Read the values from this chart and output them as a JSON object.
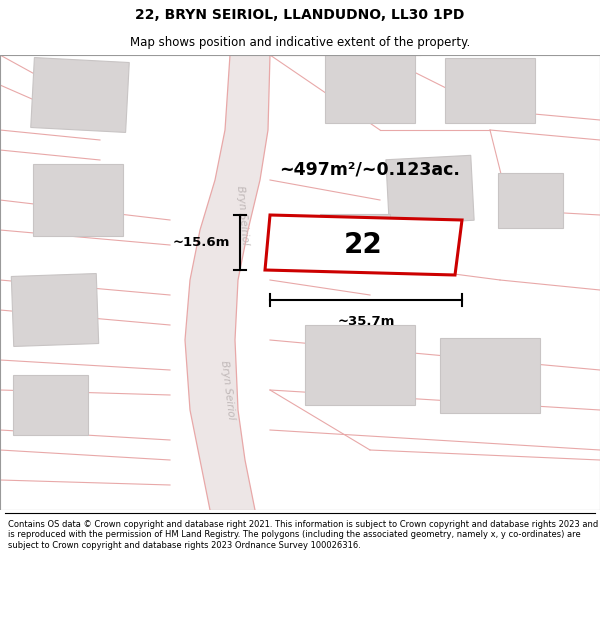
{
  "title_line1": "22, BRYN SEIRIOL, LLANDUDNO, LL30 1PD",
  "title_line2": "Map shows position and indicative extent of the property.",
  "footer_text": "Contains OS data © Crown copyright and database right 2021. This information is subject to Crown copyright and database rights 2023 and is reproduced with the permission of HM Land Registry. The polygons (including the associated geometry, namely x, y co-ordinates) are subject to Crown copyright and database rights 2023 Ordnance Survey 100026316.",
  "area_label": "~497m²/~0.123ac.",
  "width_label": "~35.7m",
  "height_label": "~15.6m",
  "number_label": "22",
  "map_bg": "#f7f3f3",
  "road_line_color": "#e8a8a8",
  "building_color": "#d8d4d4",
  "building_edge_color": "#c8c4c4",
  "plot_fill": "#ffffff",
  "plot_edge_color": "#cc0000",
  "plot_edge_width": 2.0,
  "road_label_color": "#c0b8b8",
  "dim_color": "#111111"
}
